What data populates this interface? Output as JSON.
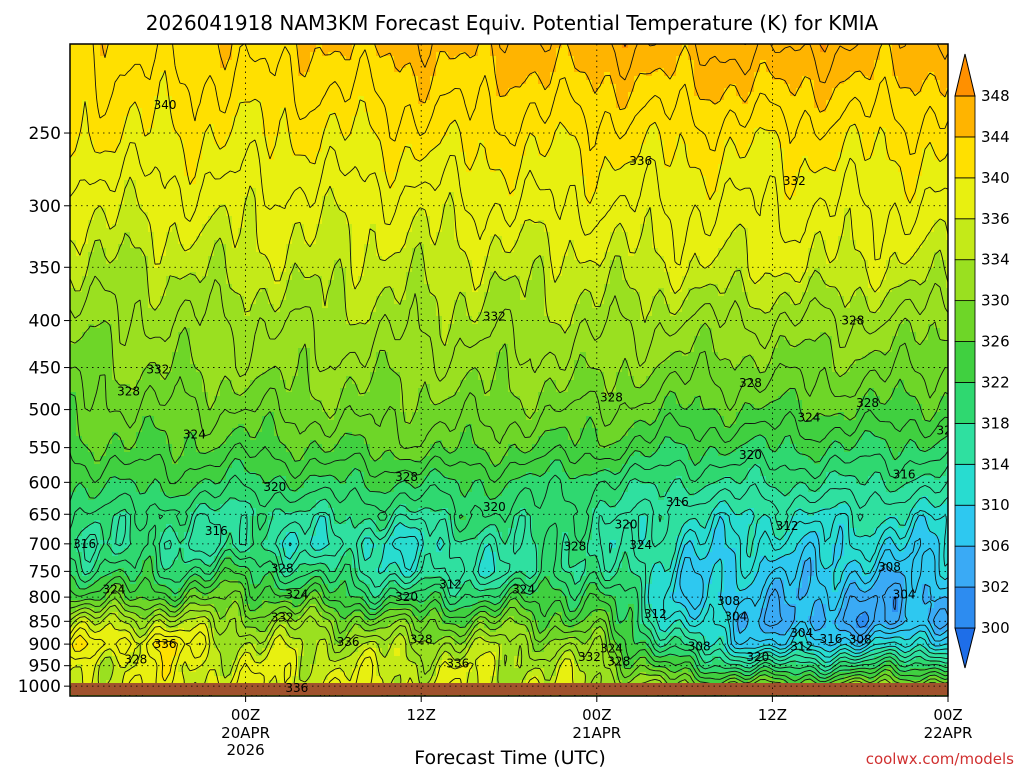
{
  "chart_data": {
    "type": "heatmap",
    "title": "2026041918 NAM3KM Forecast Equiv. Potential Temperature (K) for KMIA",
    "xlabel": "Forecast Time (UTC)",
    "ylabel": "",
    "y_scale": "log-pressure",
    "y_inverted": true,
    "y_ticks": [
      250,
      300,
      350,
      400,
      450,
      500,
      550,
      600,
      650,
      700,
      750,
      800,
      850,
      900,
      950,
      1000
    ],
    "ylim": [
      200,
      1025
    ],
    "x_range_hours": [
      -6,
      54
    ],
    "x_ticks": [
      {
        "hour": 6,
        "label": "00Z",
        "sub1": "20APR",
        "sub2": "2026"
      },
      {
        "hour": 18,
        "label": "12Z",
        "sub1": "",
        "sub2": ""
      },
      {
        "hour": 30,
        "label": "00Z",
        "sub1": "21APR",
        "sub2": ""
      },
      {
        "hour": 42,
        "label": "12Z",
        "sub1": "",
        "sub2": ""
      },
      {
        "hour": 54,
        "label": "00Z",
        "sub1": "22APR",
        "sub2": ""
      }
    ],
    "grid": "dotted",
    "colorbar": {
      "levels": [
        300,
        302,
        306,
        310,
        314,
        318,
        322,
        326,
        330,
        334,
        336,
        340,
        344,
        348
      ],
      "labels": [
        "300",
        "302",
        "306",
        "310",
        "314",
        "318",
        "322",
        "326",
        "330",
        "334",
        "336",
        "340",
        "344",
        "348"
      ],
      "colors": [
        "#1e6ee8",
        "#2d8cf0",
        "#3aaaf5",
        "#2ec8f0",
        "#28dcd0",
        "#2fe0a0",
        "#2fd870",
        "#40d040",
        "#6ed628",
        "#9ae020",
        "#c4ea18",
        "#e8f010",
        "#ffe000",
        "#ffb400",
        "#ff9000"
      ],
      "placement": "right",
      "extend": "both"
    },
    "profiles": [
      {
        "hour": -6,
        "theta_e": {
          "200": 342,
          "250": 340,
          "300": 336,
          "350": 334,
          "400": 331,
          "450": 329,
          "500": 327,
          "550": 325,
          "600": 322,
          "650": 320,
          "700": 318,
          "750": 321,
          "800": 325,
          "850": 333,
          "900": 338,
          "950": 335,
          "1000": 336
        }
      },
      {
        "hour": 0,
        "theta_e": {
          "200": 343,
          "250": 340,
          "300": 337,
          "350": 334,
          "400": 332,
          "450": 330,
          "500": 328,
          "550": 326,
          "600": 323,
          "650": 319,
          "700": 317,
          "750": 320,
          "800": 326,
          "850": 334,
          "900": 340,
          "950": 337,
          "1000": 337
        }
      },
      {
        "hour": 6,
        "theta_e": {
          "200": 343,
          "250": 340,
          "300": 337,
          "350": 335,
          "400": 332,
          "450": 331,
          "500": 328,
          "550": 325,
          "600": 321,
          "650": 317,
          "700": 316,
          "750": 322,
          "800": 327,
          "850": 331,
          "900": 334,
          "950": 336,
          "1000": 337
        }
      },
      {
        "hour": 12,
        "theta_e": {
          "200": 344,
          "250": 340,
          "300": 337,
          "350": 335,
          "400": 333,
          "450": 331,
          "500": 329,
          "550": 326,
          "600": 322,
          "650": 318,
          "700": 314,
          "750": 318,
          "800": 323,
          "850": 330,
          "900": 334,
          "950": 336,
          "1000": 337
        }
      },
      {
        "hour": 18,
        "theta_e": {
          "200": 345,
          "250": 341,
          "300": 337,
          "350": 335,
          "400": 333,
          "450": 331,
          "500": 329,
          "550": 327,
          "600": 322,
          "650": 318,
          "700": 313,
          "750": 314,
          "800": 320,
          "850": 327,
          "900": 332,
          "950": 335,
          "1000": 336
        }
      },
      {
        "hour": 24,
        "theta_e": {
          "200": 345,
          "250": 341,
          "300": 338,
          "350": 335,
          "400": 333,
          "450": 331,
          "500": 329,
          "550": 326,
          "600": 322,
          "650": 320,
          "700": 318,
          "750": 316,
          "800": 322,
          "850": 328,
          "900": 333,
          "950": 335,
          "1000": 336
        }
      },
      {
        "hour": 30,
        "theta_e": {
          "200": 346,
          "250": 341,
          "300": 338,
          "350": 335,
          "400": 333,
          "450": 331,
          "500": 328,
          "550": 325,
          "600": 320,
          "650": 318,
          "700": 318,
          "750": 320,
          "800": 324,
          "850": 326,
          "900": 330,
          "950": 333,
          "1000": 334
        }
      },
      {
        "hour": 36,
        "theta_e": {
          "200": 346,
          "250": 341,
          "300": 338,
          "350": 336,
          "400": 332,
          "450": 329,
          "500": 326,
          "550": 322,
          "600": 318,
          "650": 314,
          "700": 312,
          "750": 310,
          "800": 309,
          "850": 312,
          "900": 316,
          "950": 322,
          "1000": 330
        }
      },
      {
        "hour": 42,
        "theta_e": {
          "200": 347,
          "250": 341,
          "300": 338,
          "350": 336,
          "400": 332,
          "450": 329,
          "500": 326,
          "550": 322,
          "600": 318,
          "650": 314,
          "700": 311,
          "750": 309,
          "800": 307,
          "850": 305,
          "900": 308,
          "950": 318,
          "1000": 328
        }
      },
      {
        "hour": 48,
        "theta_e": {
          "200": 346,
          "250": 341,
          "300": 338,
          "350": 336,
          "400": 332,
          "450": 329,
          "500": 326,
          "550": 322,
          "600": 318,
          "650": 314,
          "700": 311,
          "750": 308,
          "800": 305,
          "850": 304,
          "900": 310,
          "950": 320,
          "1000": 330
        }
      },
      {
        "hour": 54,
        "theta_e": {
          "200": 345,
          "250": 341,
          "300": 338,
          "350": 335,
          "400": 331,
          "450": 328,
          "500": 325,
          "550": 321,
          "600": 317,
          "650": 313,
          "700": 310,
          "750": 308,
          "800": 305,
          "850": 304,
          "900": 312,
          "950": 322,
          "1000": 331
        }
      }
    ],
    "contour_labels": [
      {
        "text": "340",
        "hour": 0.5,
        "p": 233
      },
      {
        "text": "336",
        "hour": 33,
        "p": 268
      },
      {
        "text": "332",
        "hour": 43.5,
        "p": 282
      },
      {
        "text": "332",
        "hour": 23,
        "p": 396
      },
      {
        "text": "328",
        "hour": 47.5,
        "p": 400
      },
      {
        "text": "332",
        "hour": 0,
        "p": 452
      },
      {
        "text": "328",
        "hour": -2,
        "p": 478
      },
      {
        "text": "328",
        "hour": 40.5,
        "p": 468
      },
      {
        "text": "328",
        "hour": 31,
        "p": 485
      },
      {
        "text": "328",
        "hour": 48.5,
        "p": 492
      },
      {
        "text": "324",
        "hour": 2.5,
        "p": 532
      },
      {
        "text": "324",
        "hour": 44.5,
        "p": 510
      },
      {
        "text": "320",
        "hour": 54,
        "p": 527
      },
      {
        "text": "320",
        "hour": 40.5,
        "p": 560
      },
      {
        "text": "328",
        "hour": 17,
        "p": 592
      },
      {
        "text": "316",
        "hour": 51,
        "p": 588
      },
      {
        "text": "320",
        "hour": 8,
        "p": 607
      },
      {
        "text": "320",
        "hour": 23,
        "p": 638
      },
      {
        "text": "316",
        "hour": 35.5,
        "p": 630
      },
      {
        "text": "320",
        "hour": 32,
        "p": 667
      },
      {
        "text": "312",
        "hour": 43,
        "p": 669
      },
      {
        "text": "316",
        "hour": 4,
        "p": 678
      },
      {
        "text": "324",
        "hour": 33,
        "p": 702
      },
      {
        "text": "328",
        "hour": 28.5,
        "p": 705
      },
      {
        "text": "316",
        "hour": -5,
        "p": 700
      },
      {
        "text": "328",
        "hour": 8.5,
        "p": 745
      },
      {
        "text": "308",
        "hour": 50,
        "p": 742
      },
      {
        "text": "312",
        "hour": 20,
        "p": 775
      },
      {
        "text": "324",
        "hour": -3,
        "p": 785
      },
      {
        "text": "324",
        "hour": 9.5,
        "p": 795
      },
      {
        "text": "320",
        "hour": 17,
        "p": 800
      },
      {
        "text": "324",
        "hour": 25,
        "p": 785
      },
      {
        "text": "304",
        "hour": 51,
        "p": 795
      },
      {
        "text": "308",
        "hour": 39,
        "p": 808
      },
      {
        "text": "312",
        "hour": 34,
        "p": 835
      },
      {
        "text": "304",
        "hour": 39.5,
        "p": 840
      },
      {
        "text": "332",
        "hour": 8.5,
        "p": 842
      },
      {
        "text": "304",
        "hour": 44,
        "p": 875
      },
      {
        "text": "316",
        "hour": 46,
        "p": 888
      },
      {
        "text": "308",
        "hour": 48,
        "p": 890
      },
      {
        "text": "336",
        "hour": 0.5,
        "p": 900
      },
      {
        "text": "336",
        "hour": 13,
        "p": 895
      },
      {
        "text": "328",
        "hour": 18,
        "p": 890
      },
      {
        "text": "308",
        "hour": 37,
        "p": 905
      },
      {
        "text": "312",
        "hour": 44,
        "p": 905
      },
      {
        "text": "324",
        "hour": 31,
        "p": 910
      },
      {
        "text": "320",
        "hour": 41,
        "p": 930
      },
      {
        "text": "328",
        "hour": -1.5,
        "p": 935
      },
      {
        "text": "336",
        "hour": 20.5,
        "p": 945
      },
      {
        "text": "332",
        "hour": 29.5,
        "p": 930
      },
      {
        "text": "328",
        "hour": 31.5,
        "p": 940
      },
      {
        "text": "336",
        "hour": 9.5,
        "p": 1005
      }
    ]
  },
  "credit": "coolwx.com/models"
}
